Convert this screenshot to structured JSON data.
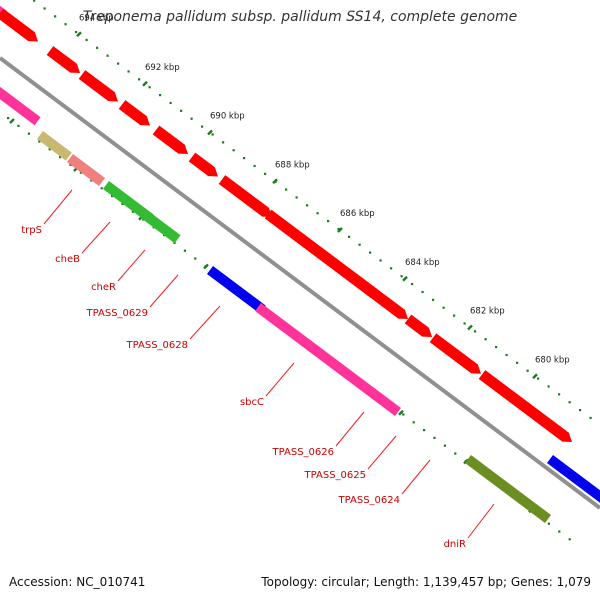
{
  "title": "Treponema pallidum subsp. pallidum SS14, complete genome",
  "footer": {
    "accession": "Accession: NC_010741",
    "stats": "Topology: circular; Length: 1,139,457 bp; Genes: 1,079"
  },
  "ticks": [
    {
      "label": "694 kbp"
    },
    {
      "label": "692 kbp"
    },
    {
      "label": "690 kbp"
    },
    {
      "label": "688 kbp"
    },
    {
      "label": "686 kbp"
    },
    {
      "label": "684 kbp"
    },
    {
      "label": "682 kbp"
    },
    {
      "label": "680 kbp"
    }
  ],
  "gene_labels": [
    "trpS",
    "cheB",
    "cheR",
    "TPASS_0629",
    "TPASS_0628",
    "sbcC",
    "TPASS_0626",
    "TPASS_0625",
    "TPASS_0624",
    "dniR"
  ],
  "colors": {
    "backbone": "#909090",
    "cds": "#ff0000",
    "tick_major": "#1f7a1f",
    "tick_minor": "#1f7a1f",
    "label_line": "#ee2222",
    "gene_label": "#cc0000",
    "trpS": "#ff3399",
    "cheB": "#c8b870",
    "cheR": "#f08080",
    "TPASS_0629": "#33bb33",
    "TPASS_0628": "#33bb33",
    "sbcC_left": "#0000ee",
    "sbcC": "#ff3399",
    "TPASS_0626": "#ff3399",
    "dniR": "#6b8e23",
    "right_blue": "#0000ee"
  }
}
